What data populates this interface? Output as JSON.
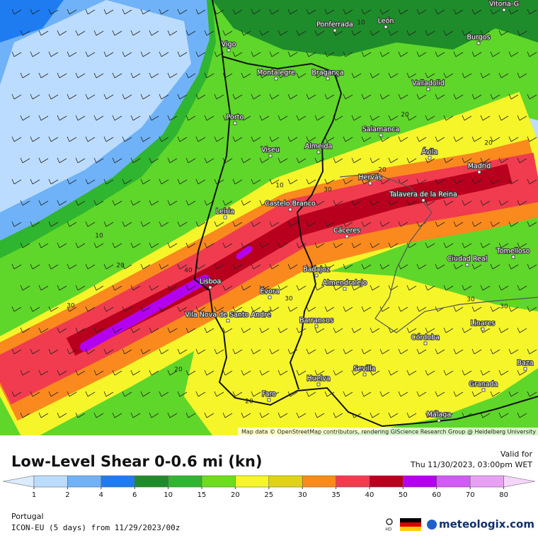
{
  "map": {
    "cities": [
      "Vitoria-G",
      "Ponferrada",
      "León",
      "Vigo",
      "Burgos",
      "Montalegre",
      "Bragança",
      "Valladolid",
      "Porto",
      "Salamanca",
      "Viseu",
      "Almeida",
      "Ávila",
      "Madrid",
      "Hervás",
      "Talavera de la Reina",
      "Leiria",
      "Castelo Branco",
      "Cáceres",
      "Ciudad Real",
      "Tomelloso",
      "Lisboa",
      "Badajoz",
      "Almendralejo",
      "Évora",
      "Vila Nova de Santo André",
      "Barrancos",
      "Linares",
      "Córdoba",
      "Baza",
      "Sevilla",
      "Granada",
      "Huelva",
      "Faro",
      "Málaga"
    ],
    "contour_labels": [
      10,
      10,
      10,
      20,
      20,
      20,
      30,
      30,
      30,
      40,
      30,
      20,
      20,
      30,
      20
    ],
    "attribution": "Map data © OpenStreetMap contributors, rendering GIScience Research Group @ Heidelberg University"
  },
  "footer": {
    "title": "Low-Level Shear 0-0.6 mi (kn)",
    "valid_label": "Valid for",
    "valid_time": "Thu 11/30/2023, 03:00pm WET",
    "region": "Portugal",
    "model": "ICON-EU (5 days) from 11/29/2023/00z",
    "hd": "HD",
    "brand": "meteologix.com"
  },
  "legend": {
    "ticks": [
      1,
      2,
      4,
      6,
      10,
      15,
      20,
      25,
      30,
      35,
      40,
      50,
      60,
      70,
      80
    ],
    "colors": [
      "#dcebff",
      "#bcdcff",
      "#6fb2f7",
      "#1e7cf0",
      "#1e8c2a",
      "#2fb52f",
      "#6bdc1e",
      "#f5f52a",
      "#e0d21a",
      "#fa8a1e",
      "#f03c4e",
      "#b8001e",
      "#b400f0",
      "#d25af5",
      "#e8a0f5",
      "#f5d6fa"
    ]
  }
}
